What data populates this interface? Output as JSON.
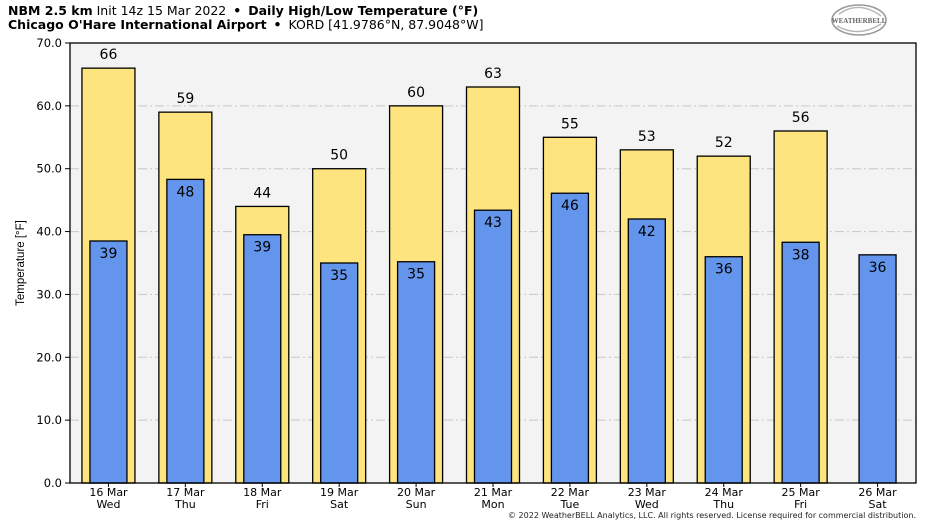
{
  "header": {
    "model": "NBM 2.5 km",
    "init": "Init 14z 15 Mar 2022",
    "bullet": "•",
    "product": "Daily High/Low Temperature (°F)",
    "station": "Chicago O'Hare International Airport",
    "station_id": "KORD [41.9786°N, 87.9048°W]"
  },
  "logo": {
    "text": "WEATHERBELL"
  },
  "copyright": "© 2022 WeatherBELL Analytics, LLC. All rights reserved. License required for commercial distribution.",
  "colors": {
    "high_bar": "#fde47f",
    "low_bar": "#6495ed",
    "plot_bg": "#f3f3f3",
    "grid": "#c8c8c8"
  },
  "chart_data": {
    "type": "bar",
    "ylabel": "Temperature [°F]",
    "ylim": [
      0,
      70
    ],
    "yticks": [
      "0.0",
      "10.0",
      "20.0",
      "30.0",
      "40.0",
      "50.0",
      "60.0",
      "70.0"
    ],
    "grid": true,
    "categories": [
      [
        "16 Mar",
        "Wed"
      ],
      [
        "17 Mar",
        "Thu"
      ],
      [
        "18 Mar",
        "Fri"
      ],
      [
        "19 Mar",
        "Sat"
      ],
      [
        "20 Mar",
        "Sun"
      ],
      [
        "21 Mar",
        "Mon"
      ],
      [
        "22 Mar",
        "Tue"
      ],
      [
        "23 Mar",
        "Wed"
      ],
      [
        "24 Mar",
        "Thu"
      ],
      [
        "25 Mar",
        "Fri"
      ],
      [
        "26 Mar",
        "Sat"
      ]
    ],
    "series": [
      {
        "values": [
          66,
          59,
          44,
          50,
          60,
          63,
          55,
          53,
          52,
          56,
          null
        ],
        "labels": [
          "66",
          "59",
          "44",
          "50",
          "60",
          "63",
          "55",
          "53",
          "52",
          "56",
          null
        ]
      },
      {
        "values": [
          38.5,
          48.3,
          39.5,
          35,
          35.2,
          43.4,
          46.1,
          42,
          36,
          38.3,
          36.3
        ],
        "labels": [
          "39",
          "48",
          "39",
          "35",
          "35",
          "43",
          "46",
          "42",
          "36",
          "38",
          "36"
        ]
      }
    ]
  }
}
